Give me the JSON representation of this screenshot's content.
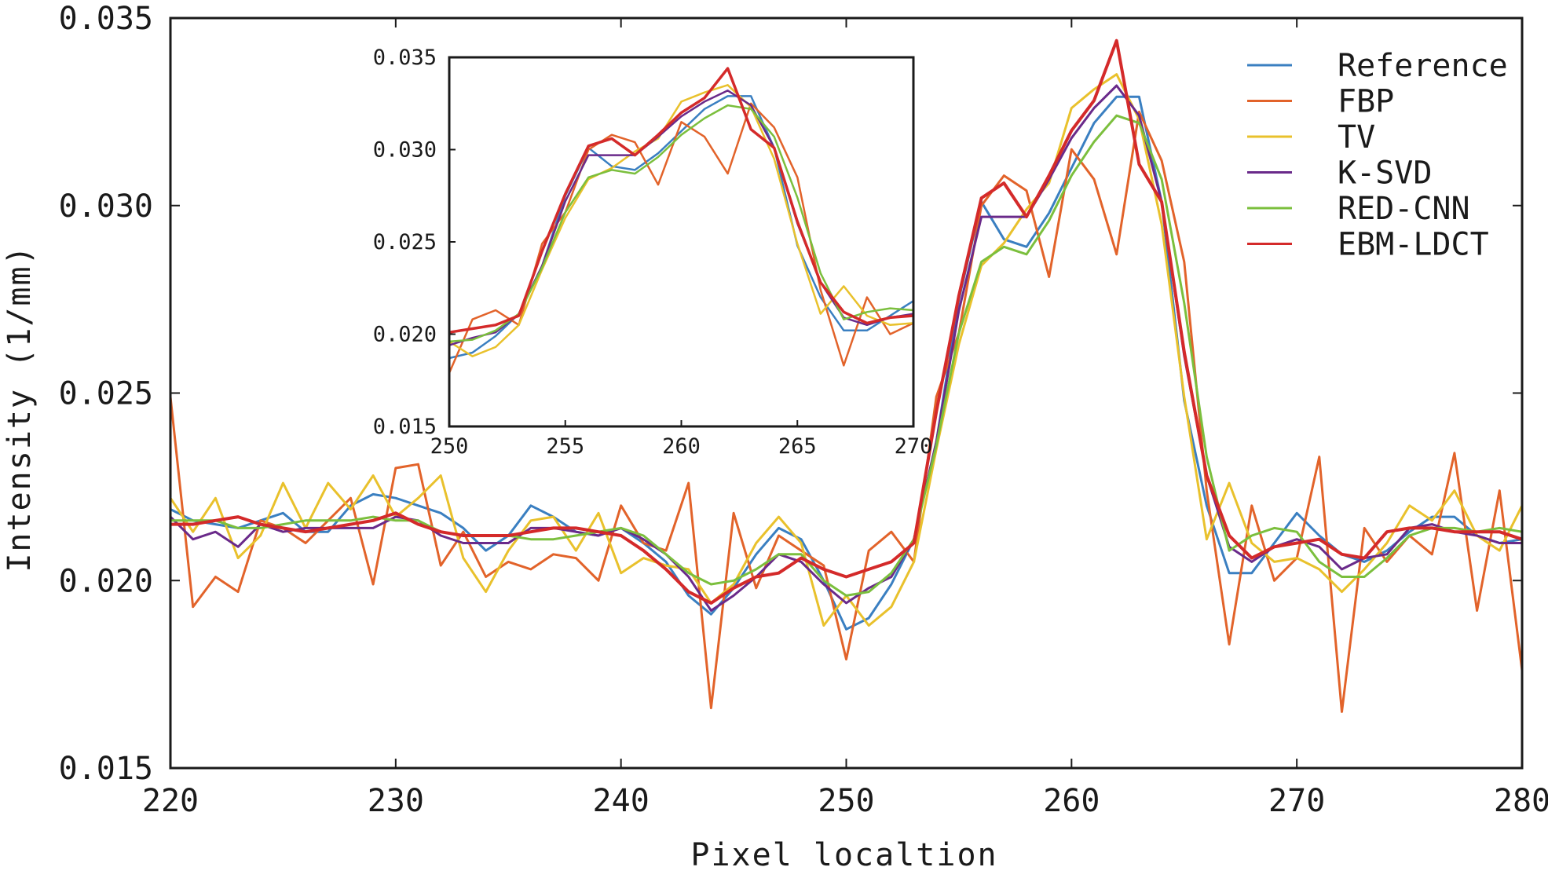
{
  "chart_data": {
    "type": "line",
    "xlabel": "Pixel localtion",
    "ylabel": "Intensity (1/mm)",
    "xlim": [
      220,
      280
    ],
    "ylim": [
      0.015,
      0.035
    ],
    "x_ticks": [
      "220",
      "230",
      "240",
      "250",
      "260",
      "270",
      "280"
    ],
    "y_ticks": [
      "0.015",
      "0.020",
      "0.025",
      "0.030",
      "0.035"
    ],
    "legend": {
      "position": "top-right"
    },
    "x": [
      220,
      221,
      222,
      223,
      224,
      225,
      226,
      227,
      228,
      229,
      230,
      231,
      232,
      233,
      234,
      235,
      236,
      237,
      238,
      239,
      240,
      241,
      242,
      243,
      244,
      245,
      246,
      247,
      248,
      249,
      250,
      251,
      252,
      253,
      254,
      255,
      256,
      257,
      258,
      259,
      260,
      261,
      262,
      263,
      264,
      265,
      266,
      267,
      268,
      269,
      270,
      271,
      272,
      273,
      274,
      275,
      276,
      277,
      278,
      279,
      280
    ],
    "series": [
      {
        "name": "Reference",
        "color": "#3a7fc1",
        "values": [
          0.0219,
          0.0216,
          0.0215,
          0.0214,
          0.0216,
          0.0218,
          0.0213,
          0.0213,
          0.022,
          0.0223,
          0.0222,
          0.022,
          0.0218,
          0.0214,
          0.0208,
          0.0212,
          0.022,
          0.0217,
          0.0213,
          0.0212,
          0.0214,
          0.021,
          0.0205,
          0.0196,
          0.0191,
          0.0198,
          0.0207,
          0.0214,
          0.0211,
          0.02,
          0.0187,
          0.019,
          0.0199,
          0.0211,
          0.0237,
          0.0275,
          0.0301,
          0.0291,
          0.0289,
          0.0298,
          0.031,
          0.0322,
          0.0329,
          0.0329,
          0.0301,
          0.0248,
          0.022,
          0.0202,
          0.0202,
          0.021,
          0.0218,
          0.0212,
          0.0207,
          0.0205,
          0.0208,
          0.0213,
          0.0217,
          0.0217,
          0.0212,
          0.021,
          0.0211
        ]
      },
      {
        "name": "FBP",
        "color": "#e2632a",
        "values": [
          0.0249,
          0.0193,
          0.0201,
          0.0197,
          0.0216,
          0.0214,
          0.021,
          0.0216,
          0.0222,
          0.0199,
          0.023,
          0.0231,
          0.0204,
          0.0213,
          0.0201,
          0.0205,
          0.0203,
          0.0207,
          0.0206,
          0.02,
          0.022,
          0.021,
          0.0208,
          0.0226,
          0.0166,
          0.0218,
          0.0198,
          0.0212,
          0.0208,
          0.0204,
          0.0179,
          0.0208,
          0.0213,
          0.0205,
          0.0249,
          0.0266,
          0.03,
          0.0308,
          0.0304,
          0.0281,
          0.0315,
          0.0307,
          0.0287,
          0.0325,
          0.0312,
          0.0285,
          0.0224,
          0.0183,
          0.022,
          0.02,
          0.0206,
          0.0233,
          0.0165,
          0.0214,
          0.0205,
          0.0212,
          0.0207,
          0.0234,
          0.0192,
          0.0224,
          0.0176
        ]
      },
      {
        "name": "TV",
        "color": "#e9c12c",
        "values": [
          0.0222,
          0.0213,
          0.0222,
          0.0206,
          0.0212,
          0.0226,
          0.0214,
          0.0226,
          0.0219,
          0.0228,
          0.0217,
          0.0222,
          0.0228,
          0.0206,
          0.0197,
          0.0208,
          0.0216,
          0.0217,
          0.0208,
          0.0218,
          0.0202,
          0.0206,
          0.0204,
          0.0203,
          0.0194,
          0.0199,
          0.021,
          0.0217,
          0.021,
          0.0188,
          0.0196,
          0.0188,
          0.0193,
          0.0205,
          0.0235,
          0.0263,
          0.0284,
          0.029,
          0.0299,
          0.0306,
          0.0326,
          0.0331,
          0.0335,
          0.0323,
          0.0295,
          0.0249,
          0.0211,
          0.0226,
          0.021,
          0.0205,
          0.0206,
          0.0203,
          0.0197,
          0.0203,
          0.021,
          0.022,
          0.0216,
          0.0224,
          0.0212,
          0.0208,
          0.022
        ]
      },
      {
        "name": "K-SVD",
        "color": "#6a2a8a",
        "values": [
          0.0217,
          0.0211,
          0.0213,
          0.0209,
          0.0215,
          0.0213,
          0.0214,
          0.0214,
          0.0214,
          0.0214,
          0.0217,
          0.0216,
          0.0212,
          0.021,
          0.021,
          0.021,
          0.0214,
          0.0214,
          0.0213,
          0.0212,
          0.0214,
          0.0211,
          0.0207,
          0.0201,
          0.0192,
          0.0196,
          0.0201,
          0.0207,
          0.0205,
          0.0199,
          0.0194,
          0.0198,
          0.0201,
          0.0211,
          0.0237,
          0.0272,
          0.0297,
          0.0297,
          0.0297,
          0.0307,
          0.0318,
          0.0326,
          0.0332,
          0.0324,
          0.0301,
          0.026,
          0.0228,
          0.0209,
          0.0205,
          0.0209,
          0.0211,
          0.0209,
          0.0203,
          0.0206,
          0.0207,
          0.0214,
          0.0215,
          0.0213,
          0.0212,
          0.021,
          0.021
        ]
      },
      {
        "name": "RED-CNN",
        "color": "#7bbf3d",
        "values": [
          0.0216,
          0.0216,
          0.0216,
          0.0214,
          0.0214,
          0.0215,
          0.0216,
          0.0216,
          0.0216,
          0.0217,
          0.0216,
          0.0216,
          0.0213,
          0.0212,
          0.0212,
          0.0212,
          0.0211,
          0.0211,
          0.0212,
          0.0213,
          0.0214,
          0.0212,
          0.0207,
          0.0202,
          0.0199,
          0.02,
          0.0203,
          0.0207,
          0.0207,
          0.02,
          0.0196,
          0.0197,
          0.0202,
          0.0211,
          0.0236,
          0.0266,
          0.0285,
          0.0289,
          0.0287,
          0.0296,
          0.0308,
          0.0317,
          0.0324,
          0.0322,
          0.0307,
          0.0274,
          0.0233,
          0.0208,
          0.0212,
          0.0214,
          0.0213,
          0.0205,
          0.0201,
          0.0201,
          0.0206,
          0.0212,
          0.0214,
          0.0214,
          0.0213,
          0.0214,
          0.0213
        ]
      },
      {
        "name": "EBM-LDCT",
        "color": "#d42a2a",
        "values": [
          0.0215,
          0.0215,
          0.0216,
          0.0217,
          0.0215,
          0.0214,
          0.0213,
          0.0214,
          0.0215,
          0.0216,
          0.0218,
          0.0215,
          0.0213,
          0.0212,
          0.0212,
          0.0212,
          0.0213,
          0.0214,
          0.0214,
          0.0213,
          0.0212,
          0.0208,
          0.0203,
          0.0197,
          0.0194,
          0.0198,
          0.0201,
          0.0202,
          0.0206,
          0.0203,
          0.0201,
          0.0203,
          0.0205,
          0.021,
          0.0245,
          0.0276,
          0.0302,
          0.0306,
          0.0297,
          0.0308,
          0.032,
          0.0328,
          0.0344,
          0.0311,
          0.0301,
          0.0261,
          0.0228,
          0.0212,
          0.0206,
          0.0209,
          0.021,
          0.0211,
          0.0207,
          0.0206,
          0.0213,
          0.0214,
          0.0214,
          0.0213,
          0.0213,
          0.0213,
          0.0211
        ]
      }
    ],
    "inset": {
      "xlim": [
        250,
        270
      ],
      "ylim": [
        0.015,
        0.035
      ],
      "x_ticks": [
        "250",
        "255",
        "260",
        "265",
        "270"
      ],
      "y_ticks": [
        "0.015",
        "0.020",
        "0.025",
        "0.030",
        "0.035"
      ]
    }
  }
}
